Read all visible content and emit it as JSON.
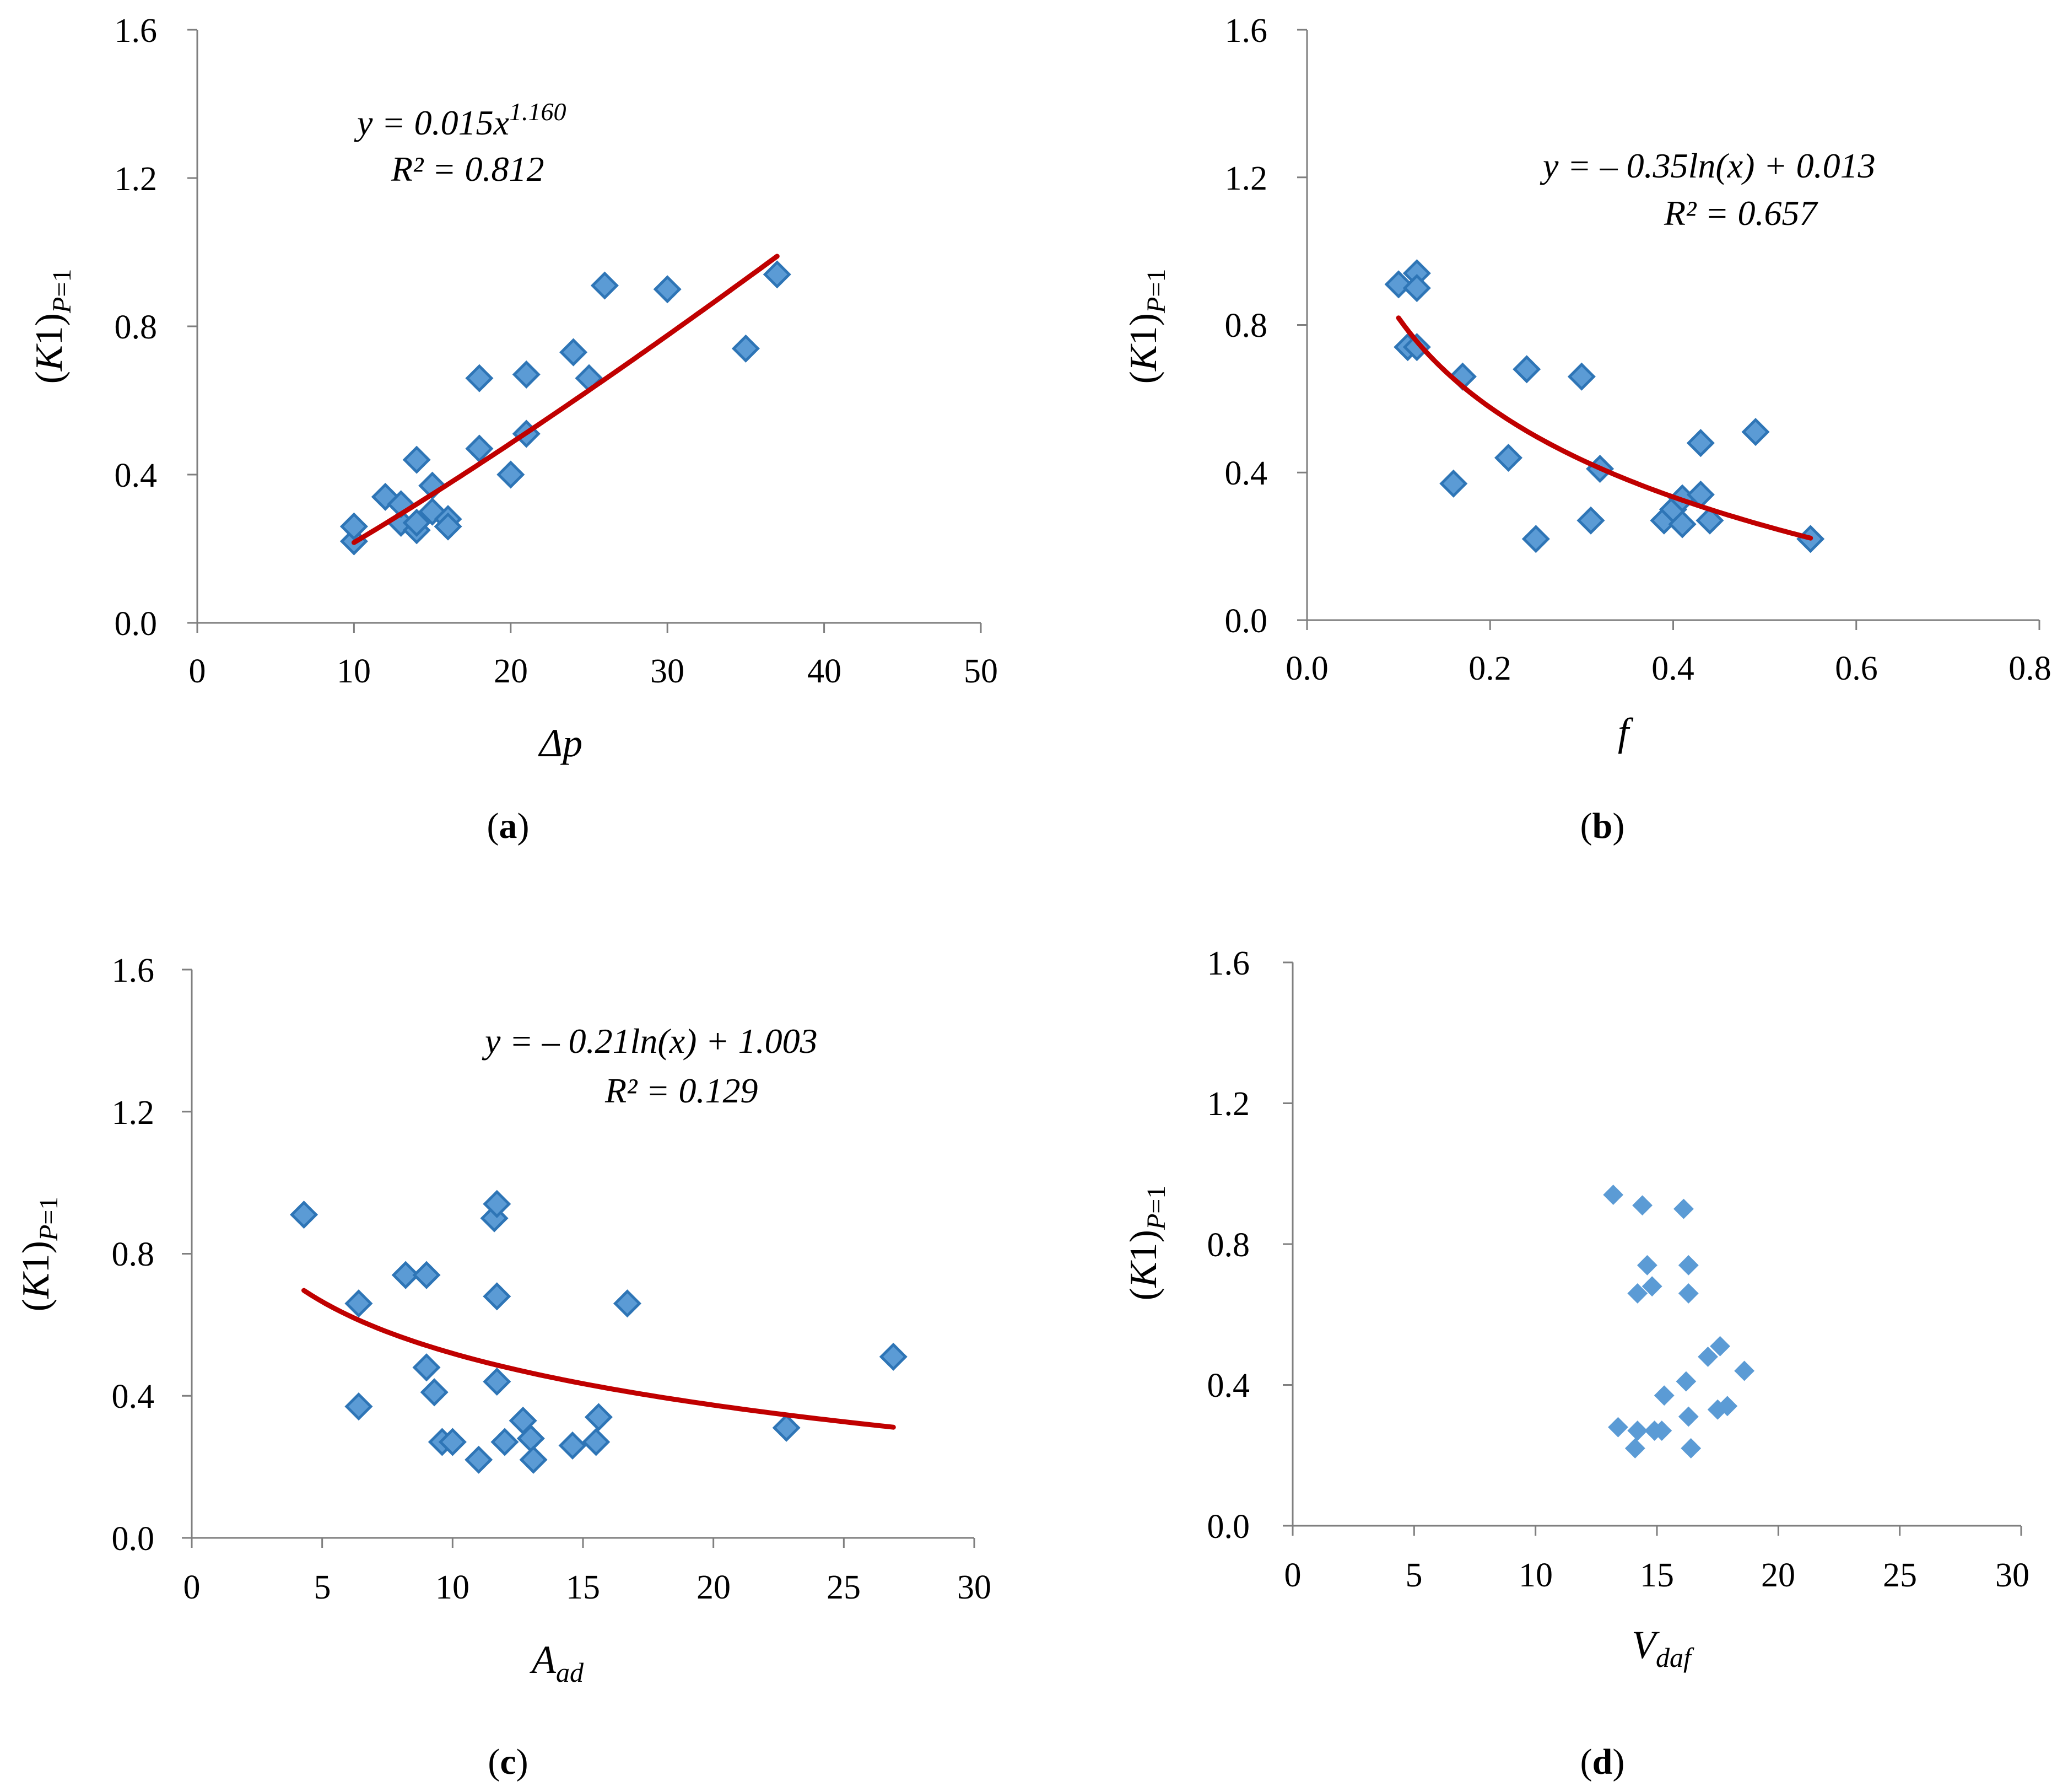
{
  "chart_data": [
    {
      "type": "scatter",
      "panel": "(a)",
      "panel_letter": "a",
      "ylabel": "(K1)P=1",
      "xlabel": "Δp",
      "xlim": [
        0,
        50
      ],
      "ylim": [
        0.0,
        1.6
      ],
      "xticks": [
        "0",
        "10",
        "20",
        "30",
        "40",
        "50"
      ],
      "yticks": [
        "0.0",
        "0.4",
        "0.8",
        "1.2",
        "1.6"
      ],
      "marker": "diamond",
      "points": [
        [
          10,
          0.22
        ],
        [
          10,
          0.26
        ],
        [
          12,
          0.34
        ],
        [
          13,
          0.27
        ],
        [
          13,
          0.32
        ],
        [
          14,
          0.25
        ],
        [
          14,
          0.27
        ],
        [
          14,
          0.44
        ],
        [
          15,
          0.37
        ],
        [
          15,
          0.3
        ],
        [
          16,
          0.28
        ],
        [
          16,
          0.26
        ],
        [
          18,
          0.66
        ],
        [
          18,
          0.47
        ],
        [
          20,
          0.4
        ],
        [
          21,
          0.67
        ],
        [
          21,
          0.51
        ],
        [
          24,
          0.73
        ],
        [
          25,
          0.66
        ],
        [
          26,
          0.91
        ],
        [
          30,
          0.9
        ],
        [
          35,
          0.74
        ],
        [
          37,
          0.94
        ]
      ],
      "trendline": {
        "kind": "power",
        "a": 0.015,
        "b": 1.16,
        "x_range": [
          10,
          37
        ]
      },
      "equation": "y = 0.015x",
      "equation_exp": "1.160",
      "r2": "R² = 0.812"
    },
    {
      "type": "scatter",
      "panel": "(b)",
      "panel_letter": "b",
      "ylabel": "(K1)P=1",
      "xlabel": "f",
      "xlim": [
        0.0,
        0.8
      ],
      "ylim": [
        0.0,
        1.6
      ],
      "xticks": [
        "0.0",
        "0.2",
        "0.4",
        "0.6",
        "0.8"
      ],
      "yticks": [
        "0.0",
        "0.4",
        "0.8",
        "1.2",
        "1.6"
      ],
      "marker": "diamond",
      "points": [
        [
          0.1,
          0.91
        ],
        [
          0.11,
          0.74
        ],
        [
          0.12,
          0.94
        ],
        [
          0.12,
          0.9
        ],
        [
          0.12,
          0.74
        ],
        [
          0.16,
          0.37
        ],
        [
          0.17,
          0.66
        ],
        [
          0.22,
          0.44
        ],
        [
          0.24,
          0.68
        ],
        [
          0.25,
          0.22
        ],
        [
          0.3,
          0.66
        ],
        [
          0.31,
          0.27
        ],
        [
          0.32,
          0.41
        ],
        [
          0.39,
          0.27
        ],
        [
          0.4,
          0.3
        ],
        [
          0.41,
          0.26
        ],
        [
          0.41,
          0.33
        ],
        [
          0.43,
          0.34
        ],
        [
          0.43,
          0.48
        ],
        [
          0.44,
          0.27
        ],
        [
          0.49,
          0.51
        ],
        [
          0.55,
          0.22
        ]
      ],
      "trendline": {
        "kind": "log",
        "a": -0.35,
        "b": 0.013,
        "x_range": [
          0.1,
          0.55
        ]
      },
      "equation": "y = – 0.35ln(x) + 0.013",
      "r2": "R² = 0.657"
    },
    {
      "type": "scatter",
      "panel": "(c)",
      "panel_letter": "c",
      "ylabel": "(K1)P=1",
      "xlabel": "Aad",
      "xlabel_main": "A",
      "xlabel_sub": "ad",
      "xlim": [
        0,
        30
      ],
      "ylim": [
        0.0,
        1.6
      ],
      "xticks": [
        "0",
        "5",
        "10",
        "15",
        "20",
        "25",
        "30"
      ],
      "yticks": [
        "0.0",
        "0.4",
        "0.8",
        "1.2",
        "1.6"
      ],
      "marker": "diamond",
      "points": [
        [
          4.3,
          0.91
        ],
        [
          6.4,
          0.66
        ],
        [
          6.4,
          0.37
        ],
        [
          8.2,
          0.74
        ],
        [
          9.0,
          0.74
        ],
        [
          9.0,
          0.48
        ],
        [
          9.3,
          0.41
        ],
        [
          9.6,
          0.27
        ],
        [
          10.0,
          0.27
        ],
        [
          11.0,
          0.22
        ],
        [
          11.6,
          0.9
        ],
        [
          11.7,
          0.94
        ],
        [
          11.7,
          0.68
        ],
        [
          11.7,
          0.44
        ],
        [
          12.0,
          0.27
        ],
        [
          12.7,
          0.33
        ],
        [
          13.0,
          0.28
        ],
        [
          13.1,
          0.22
        ],
        [
          14.6,
          0.26
        ],
        [
          15.5,
          0.27
        ],
        [
          15.6,
          0.34
        ],
        [
          16.7,
          0.66
        ],
        [
          22.8,
          0.31
        ],
        [
          26.9,
          0.51
        ]
      ],
      "trendline": {
        "kind": "log",
        "a": -0.21,
        "b": 1.003,
        "x_range": [
          4.3,
          26.9
        ]
      },
      "equation": "y = – 0.21ln(x) + 1.003",
      "r2": "R² = 0.129"
    },
    {
      "type": "scatter",
      "panel": "(d)",
      "panel_letter": "d",
      "ylabel": "(K1)P=1",
      "xlabel": "Vdaf",
      "xlabel_main": "V",
      "xlabel_sub": "daf",
      "xlim": [
        0,
        30
      ],
      "ylim": [
        0.0,
        1.6
      ],
      "xticks": [
        "0",
        "5",
        "10",
        "15",
        "20",
        "25",
        "30"
      ],
      "yticks": [
        "0.0",
        "0.4",
        "0.8",
        "1.2",
        "1.6"
      ],
      "marker": "diamond-small",
      "points": [
        [
          13.2,
          0.94
        ],
        [
          13.4,
          0.28
        ],
        [
          14.1,
          0.22
        ],
        [
          14.2,
          0.27
        ],
        [
          14.2,
          0.66
        ],
        [
          14.4,
          0.91
        ],
        [
          14.6,
          0.74
        ],
        [
          14.8,
          0.68
        ],
        [
          14.9,
          0.27
        ],
        [
          15.2,
          0.27
        ],
        [
          15.3,
          0.37
        ],
        [
          16.1,
          0.9
        ],
        [
          16.2,
          0.41
        ],
        [
          16.3,
          0.74
        ],
        [
          16.3,
          0.66
        ],
        [
          16.3,
          0.31
        ],
        [
          16.4,
          0.22
        ],
        [
          17.1,
          0.48
        ],
        [
          17.5,
          0.33
        ],
        [
          17.6,
          0.51
        ],
        [
          17.9,
          0.34
        ],
        [
          18.6,
          0.44
        ]
      ],
      "trendline": null
    }
  ],
  "colors": {
    "marker_fill": "#5b9bd5",
    "marker_stroke": "#2e75b6",
    "trendline": "#c00000",
    "axis": "#7f7f7f"
  }
}
